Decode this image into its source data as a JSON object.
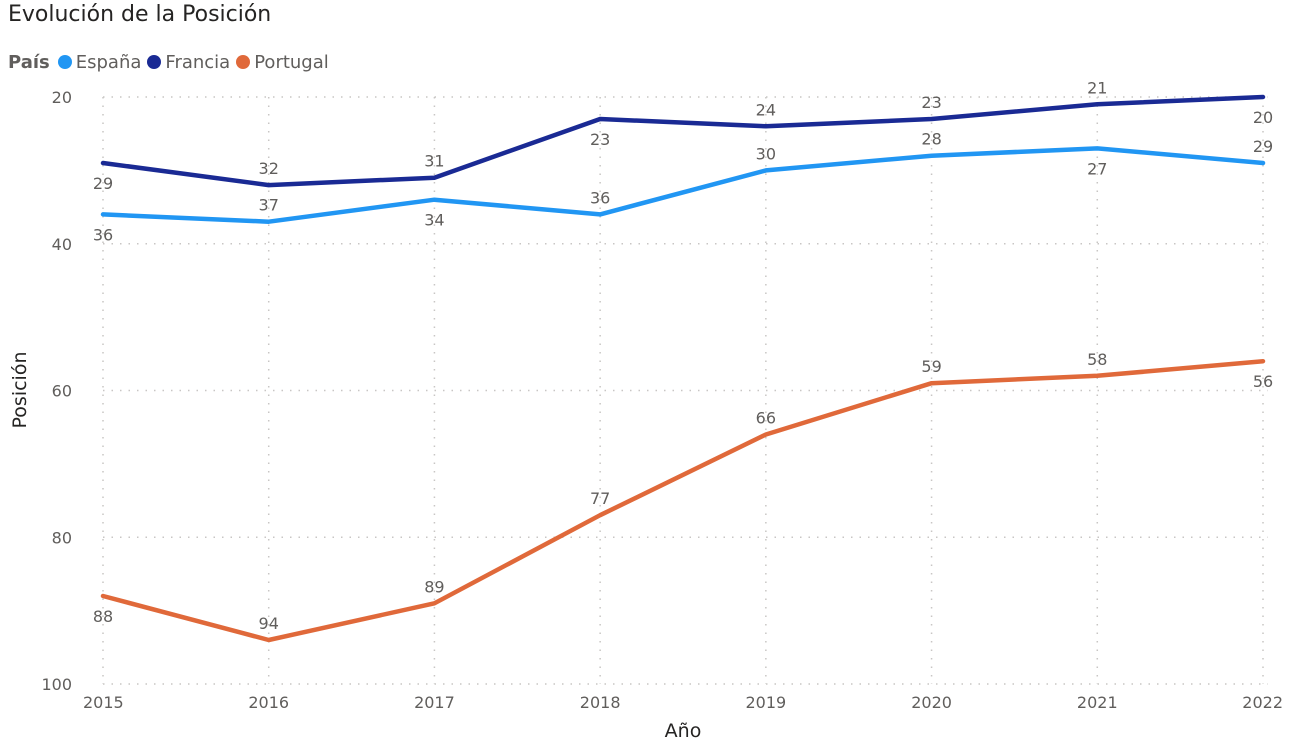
{
  "chart_data": {
    "type": "line",
    "title": "Evolución de la Posición",
    "legend_title": "País",
    "legend_position": "top-left",
    "xlabel": "Año",
    "ylabel": "Posición",
    "y_inverted": true,
    "ylim": [
      20,
      100
    ],
    "yticks": [
      20,
      40,
      60,
      80,
      100
    ],
    "grid": true,
    "x": [
      "2015",
      "2016",
      "2017",
      "2018",
      "2019",
      "2020",
      "2021",
      "2022"
    ],
    "series": [
      {
        "name": "España",
        "color": "#2196f3",
        "values": [
          36,
          37,
          34,
          36,
          30,
          28,
          27,
          29
        ]
      },
      {
        "name": "Francia",
        "color": "#1a2a94",
        "values": [
          29,
          32,
          31,
          23,
          24,
          23,
          21,
          20
        ]
      },
      {
        "name": "Portugal",
        "color": "#e0693a",
        "values": [
          88,
          94,
          89,
          77,
          66,
          59,
          58,
          56
        ]
      }
    ]
  }
}
